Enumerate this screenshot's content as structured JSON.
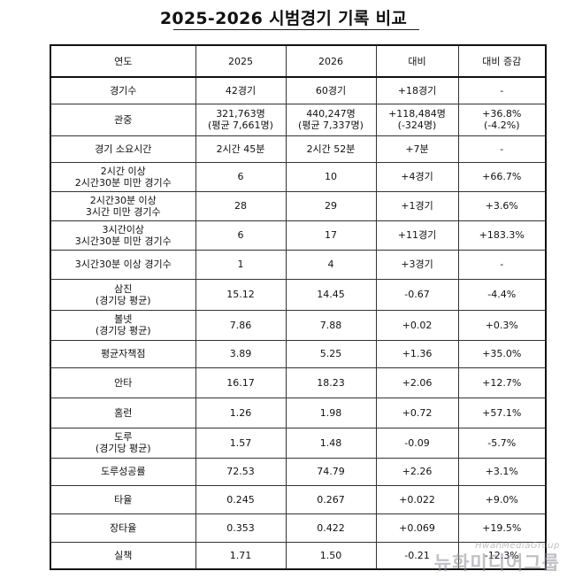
{
  "title": "2025-2026 시범경기 기록 비교",
  "table": {
    "header": [
      "연도",
      "2025",
      "2026",
      "대비",
      "대비 증감"
    ],
    "rows": [
      {
        "label": [
          "경기수"
        ],
        "y2025": [
          "42경기"
        ],
        "y2026": [
          "60경기"
        ],
        "diff": [
          "+18경기"
        ],
        "pct": [
          "-"
        ]
      },
      {
        "label": [
          "관중"
        ],
        "y2025": [
          "321,763명",
          "(평균 7,661명)"
        ],
        "y2026": [
          "440,247명",
          "(평균 7,337명)"
        ],
        "diff": [
          "+118,484명",
          "(-324명)"
        ],
        "pct": [
          "+36.8%",
          "(-4.2%)"
        ]
      },
      {
        "label": [
          "경기 소요시간"
        ],
        "y2025": [
          "2시간 45분"
        ],
        "y2026": [
          "2시간 52분"
        ],
        "diff": [
          "+7분"
        ],
        "pct": [
          "-"
        ]
      },
      {
        "label": [
          "2시간 이상",
          "2시간30분 미만 경기수"
        ],
        "y2025": [
          "6"
        ],
        "y2026": [
          "10"
        ],
        "diff": [
          "+4경기"
        ],
        "pct": [
          "+66.7%"
        ]
      },
      {
        "label": [
          "2시간30분 이상",
          "3시간 미만 경기수"
        ],
        "y2025": [
          "28"
        ],
        "y2026": [
          "29"
        ],
        "diff": [
          "+1경기"
        ],
        "pct": [
          "+3.6%"
        ]
      },
      {
        "label": [
          "3시간이상",
          "3시간30분 미만 경기수"
        ],
        "y2025": [
          "6"
        ],
        "y2026": [
          "17"
        ],
        "diff": [
          "+11경기"
        ],
        "pct": [
          "+183.3%"
        ]
      },
      {
        "label": [
          "3시간30분 이상 경기수"
        ],
        "y2025": [
          "1"
        ],
        "y2026": [
          "4"
        ],
        "diff": [
          "+3경기"
        ],
        "pct": [
          "-"
        ]
      },
      {
        "label": [
          "삼진",
          "(경기당 평균)"
        ],
        "y2025": [
          "15.12"
        ],
        "y2026": [
          "14.45"
        ],
        "diff": [
          "-0.67"
        ],
        "pct": [
          "-4.4%"
        ]
      },
      {
        "label": [
          "볼넷",
          "(경기당 평균)"
        ],
        "y2025": [
          "7.86"
        ],
        "y2026": [
          "7.88"
        ],
        "diff": [
          "+0.02"
        ],
        "pct": [
          "+0.3%"
        ]
      },
      {
        "label": [
          "평균자책점"
        ],
        "y2025": [
          "3.89"
        ],
        "y2026": [
          "5.25"
        ],
        "diff": [
          "+1.36"
        ],
        "pct": [
          "+35.0%"
        ]
      },
      {
        "label": [
          "안타"
        ],
        "y2025": [
          "16.17"
        ],
        "y2026": [
          "18.23"
        ],
        "diff": [
          "+2.06"
        ],
        "pct": [
          "+12.7%"
        ]
      },
      {
        "label": [
          "홈런"
        ],
        "y2025": [
          "1.26"
        ],
        "y2026": [
          "1.98"
        ],
        "diff": [
          "+0.72"
        ],
        "pct": [
          "+57.1%"
        ]
      },
      {
        "label": [
          "도루",
          "(경기당 평균)"
        ],
        "y2025": [
          "1.57"
        ],
        "y2026": [
          "1.48"
        ],
        "diff": [
          "-0.09"
        ],
        "pct": [
          "-5.7%"
        ]
      },
      {
        "label": [
          "도루성공률"
        ],
        "y2025": [
          "72.53"
        ],
        "y2026": [
          "74.79"
        ],
        "diff": [
          "+2.26"
        ],
        "pct": [
          "+3.1%"
        ]
      },
      {
        "label": [
          "타율"
        ],
        "y2025": [
          "0.245"
        ],
        "y2026": [
          "0.267"
        ],
        "diff": [
          "+0.022"
        ],
        "pct": [
          "+9.0%"
        ]
      },
      {
        "label": [
          "장타율"
        ],
        "y2025": [
          "0.353"
        ],
        "y2026": [
          "0.422"
        ],
        "diff": [
          "+0.069"
        ],
        "pct": [
          "+19.5%"
        ]
      },
      {
        "label": [
          "실책"
        ],
        "y2025": [
          "1.71"
        ],
        "y2026": [
          "1.50"
        ],
        "diff": [
          "-0.21"
        ],
        "pct": [
          "-12.3%"
        ]
      }
    ]
  },
  "watermark": {
    "en": "HwahMediaGroup",
    "ko": "뉴화미디어그룹"
  }
}
